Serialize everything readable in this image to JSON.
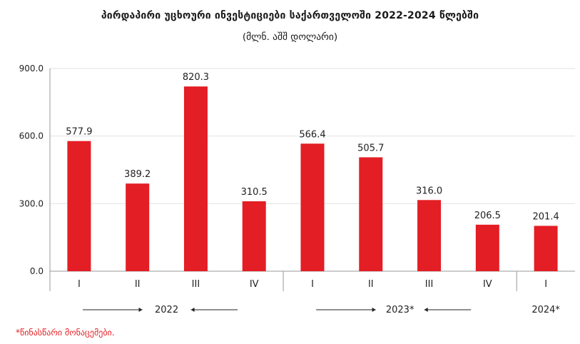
{
  "title": "პირდაპირი უცხოური ინვესტიციები საქართველოში 2022-2024 წლებში",
  "subtitle": "(მლნ. აშშ დოლარი)",
  "footnote": "*წინასწარი მონაცემები.",
  "colors": {
    "bar": "#e31e24",
    "axis": "#999999",
    "grid": "#e2e2e2"
  },
  "chart_data": {
    "type": "bar",
    "title": "პირდაპირი უცხოური ინვესტიციები საქართველოში 2022-2024 წლებში",
    "subtitle": "(მლნ. აშშ დოლარი)",
    "categories": [
      "I",
      "II",
      "III",
      "IV",
      "I",
      "II",
      "III",
      "IV",
      "I"
    ],
    "groups": [
      {
        "label": "2022",
        "count": 4
      },
      {
        "label": "2023*",
        "count": 4
      },
      {
        "label": "2024*",
        "count": 1
      }
    ],
    "values": [
      577.9,
      389.2,
      820.3,
      310.5,
      566.4,
      505.7,
      316.0,
      206.5,
      201.4
    ],
    "value_labels": [
      "577.9",
      "389.2",
      "820.3",
      "310.5",
      "566.4",
      "505.7",
      "316.0",
      "206.5",
      "201.4"
    ],
    "yticks": [
      "0.0",
      "300.0",
      "600.0",
      "900.0"
    ],
    "ylim": [
      0,
      900
    ],
    "grid": true,
    "legend": "none"
  }
}
